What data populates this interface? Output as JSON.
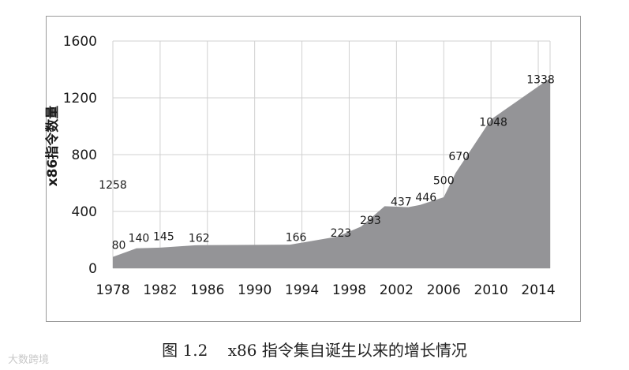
{
  "chart_data": {
    "type": "area",
    "ylabel": "x86指令数量",
    "xlim": [
      1978,
      2015
    ],
    "ylim": [
      0,
      1600
    ],
    "yticks": [
      0,
      400,
      800,
      1200,
      1600
    ],
    "ytick_labels": [
      "0",
      "400",
      "800",
      "1200",
      "1600"
    ],
    "xticks": [
      1978,
      1982,
      1986,
      1990,
      1994,
      1998,
      2002,
      2006,
      2010,
      2014
    ],
    "xtick_labels": [
      "1978",
      "1982",
      "1986",
      "1990",
      "1994",
      "1998",
      "2002",
      "2006",
      "2010",
      "2014"
    ],
    "grid": true,
    "fill_color": "#949497",
    "x": [
      1978,
      1980,
      1982,
      1985,
      1993,
      1997,
      1999,
      2001,
      2003,
      2004,
      2006,
      2007,
      2010,
      2015
    ],
    "y": [
      80,
      140,
      145,
      162,
      166,
      223,
      293,
      437,
      430,
      446,
      500,
      670,
      1048,
      1338
    ],
    "labels": [
      {
        "text": "80",
        "x": 1978.5,
        "y": 165
      },
      {
        "text": "140",
        "x": 1980.2,
        "y": 215
      },
      {
        "text": "145",
        "x": 1982.3,
        "y": 225
      },
      {
        "text": "162",
        "x": 1985.3,
        "y": 215
      },
      {
        "text": "1258",
        "x": 1978,
        "y": 590
      },
      {
        "text": "166",
        "x": 1993.5,
        "y": 220
      },
      {
        "text": "223",
        "x": 1997.3,
        "y": 250
      },
      {
        "text": "293",
        "x": 1999.8,
        "y": 340
      },
      {
        "text": "437",
        "x": 2002.4,
        "y": 470
      },
      {
        "text": "446",
        "x": 2004.5,
        "y": 500
      },
      {
        "text": "500",
        "x": 2006,
        "y": 620
      },
      {
        "text": "670",
        "x": 2007.3,
        "y": 790
      },
      {
        "text": "1048",
        "x": 2010.2,
        "y": 1030
      },
      {
        "text": "1338",
        "x": 2014.2,
        "y": 1330
      }
    ]
  },
  "caption": "图 1.2    x86 指令集自诞生以来的增长情况",
  "watermark": "大数跨境"
}
